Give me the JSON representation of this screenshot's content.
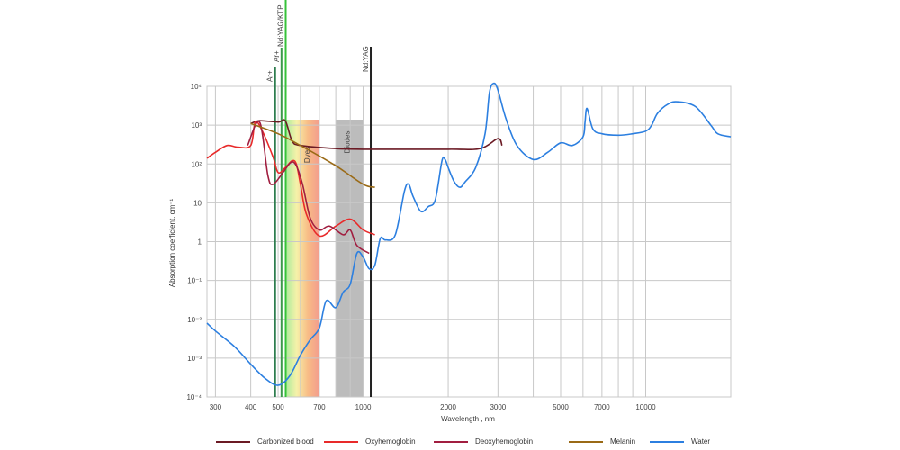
{
  "chart_data": {
    "type": "line",
    "title": "",
    "xlabel": "Wavelength , nm",
    "ylabel": "Absorption coefficient, cm⁻¹",
    "x_scale": "log",
    "y_scale": "log",
    "xlim": [
      280,
      20000
    ],
    "ylim": [
      0.0001,
      10000
    ],
    "grid": true,
    "x_ticks": [
      {
        "value": 300,
        "label": "300"
      },
      {
        "value": 400,
        "label": "400"
      },
      {
        "value": 500,
        "label": "500"
      },
      {
        "value": 700,
        "label": "700"
      },
      {
        "value": 1000,
        "label": "1000"
      },
      {
        "value": 2000,
        "label": "2000"
      },
      {
        "value": 3000,
        "label": "3000"
      },
      {
        "value": 5000,
        "label": "5000"
      },
      {
        "value": 7000,
        "label": "7000"
      },
      {
        "value": 10000,
        "label": "10000"
      }
    ],
    "y_ticks": [
      {
        "value": 0.0001,
        "label": "10⁻⁴"
      },
      {
        "value": 0.001,
        "label": "10⁻³"
      },
      {
        "value": 0.01,
        "label": "10⁻²"
      },
      {
        "value": 0.1,
        "label": "10⁻¹"
      },
      {
        "value": 1,
        "label": "1"
      },
      {
        "value": 10,
        "label": "10"
      },
      {
        "value": 100,
        "label": "10²"
      },
      {
        "value": 1000,
        "label": "10³"
      },
      {
        "value": 10000,
        "label": "10⁴"
      }
    ],
    "bands": [
      {
        "label": "Dyes",
        "x": [
          530,
          700
        ],
        "type": "gradient",
        "colors": [
          "#9be88a",
          "#f4ef9a",
          "#f7b070",
          "#f08a7a"
        ]
      },
      {
        "label": "Diodes",
        "x": [
          800,
          1000
        ],
        "type": "solid",
        "colors": [
          "#b5b5b5"
        ]
      }
    ],
    "lasers": [
      {
        "label": "Ar+",
        "x": 488,
        "color": "#2e7d4f"
      },
      {
        "label": "Ar+",
        "x": 514,
        "color": "#3b9a4a"
      },
      {
        "label": "Nd:YAG/KTP",
        "x": 532,
        "color": "#36c23a"
      },
      {
        "label": "Nd:YAG",
        "x": 1064,
        "color": "#222222"
      }
    ],
    "legend_position": "bottom",
    "series": [
      {
        "name": "Carbonized blood",
        "color": "#6b1a24",
        "points": [
          [
            400,
            1100
          ],
          [
            430,
            1300
          ],
          [
            500,
            1200
          ],
          [
            530,
            1300
          ],
          [
            560,
            400
          ],
          [
            600,
            300
          ],
          [
            800,
            250
          ],
          [
            1000,
            240
          ],
          [
            2000,
            240
          ],
          [
            2600,
            250
          ],
          [
            3000,
            450
          ],
          [
            3100,
            300
          ]
        ]
      },
      {
        "name": "Oxyhemoglobin",
        "color": "#e82a2a",
        "points": [
          [
            280,
            140
          ],
          [
            300,
            200
          ],
          [
            330,
            300
          ],
          [
            360,
            270
          ],
          [
            400,
            300
          ],
          [
            415,
            1200
          ],
          [
            440,
            700
          ],
          [
            480,
            150
          ],
          [
            500,
            60
          ],
          [
            530,
            80
          ],
          [
            560,
            120
          ],
          [
            580,
            100
          ],
          [
            600,
            30
          ],
          [
            630,
            5
          ],
          [
            700,
            1.4
          ],
          [
            800,
            2.5
          ],
          [
            900,
            3.8
          ],
          [
            1000,
            2
          ],
          [
            1100,
            1.5
          ]
        ]
      },
      {
        "name": "Deoxyhemoglobin",
        "color": "#a11e40",
        "points": [
          [
            390,
            300
          ],
          [
            430,
            1200
          ],
          [
            460,
            50
          ],
          [
            480,
            30
          ],
          [
            520,
            60
          ],
          [
            555,
            110
          ],
          [
            580,
            90
          ],
          [
            610,
            30
          ],
          [
            650,
            4
          ],
          [
            700,
            2
          ],
          [
            760,
            2.5
          ],
          [
            850,
            1.5
          ],
          [
            900,
            2
          ],
          [
            950,
            0.8
          ],
          [
            1050,
            0.5
          ]
        ]
      },
      {
        "name": "Melanin",
        "color": "#9a6a16",
        "points": [
          [
            400,
            1100
          ],
          [
            500,
            600
          ],
          [
            600,
            300
          ],
          [
            800,
            90
          ],
          [
            1000,
            30
          ],
          [
            1100,
            25
          ]
        ]
      },
      {
        "name": "Water",
        "color": "#2c7fe0",
        "points": [
          [
            280,
            0.008
          ],
          [
            300,
            0.005
          ],
          [
            350,
            0.002
          ],
          [
            400,
            0.0007
          ],
          [
            450,
            0.0003
          ],
          [
            500,
            0.0002
          ],
          [
            550,
            0.00035
          ],
          [
            600,
            0.0012
          ],
          [
            650,
            0.003
          ],
          [
            700,
            0.006
          ],
          [
            740,
            0.03
          ],
          [
            800,
            0.02
          ],
          [
            850,
            0.05
          ],
          [
            900,
            0.08
          ],
          [
            950,
            0.5
          ],
          [
            1000,
            0.4
          ],
          [
            1050,
            0.2
          ],
          [
            1100,
            0.25
          ],
          [
            1150,
            1.2
          ],
          [
            1200,
            1.1
          ],
          [
            1300,
            1.5
          ],
          [
            1400,
            20
          ],
          [
            1450,
            30
          ],
          [
            1500,
            15
          ],
          [
            1600,
            6
          ],
          [
            1700,
            8
          ],
          [
            1800,
            12
          ],
          [
            1900,
            120
          ],
          [
            1950,
            130
          ],
          [
            2000,
            80
          ],
          [
            2100,
            35
          ],
          [
            2200,
            25
          ],
          [
            2300,
            35
          ],
          [
            2500,
            80
          ],
          [
            2700,
            600
          ],
          [
            2800,
            7000
          ],
          [
            2900,
            12000
          ],
          [
            3000,
            8000
          ],
          [
            3200,
            1500
          ],
          [
            3500,
            300
          ],
          [
            4000,
            130
          ],
          [
            4500,
            200
          ],
          [
            5000,
            350
          ],
          [
            5500,
            300
          ],
          [
            6000,
            500
          ],
          [
            6100,
            1200
          ],
          [
            6200,
            2700
          ],
          [
            6500,
            800
          ],
          [
            7000,
            600
          ],
          [
            8000,
            550
          ],
          [
            9000,
            600
          ],
          [
            10000,
            700
          ],
          [
            10500,
            1000
          ],
          [
            11000,
            2000
          ],
          [
            12000,
            3500
          ],
          [
            13000,
            4000
          ],
          [
            15000,
            3000
          ],
          [
            17000,
            1000
          ],
          [
            18000,
            600
          ],
          [
            20000,
            500
          ]
        ]
      }
    ]
  }
}
